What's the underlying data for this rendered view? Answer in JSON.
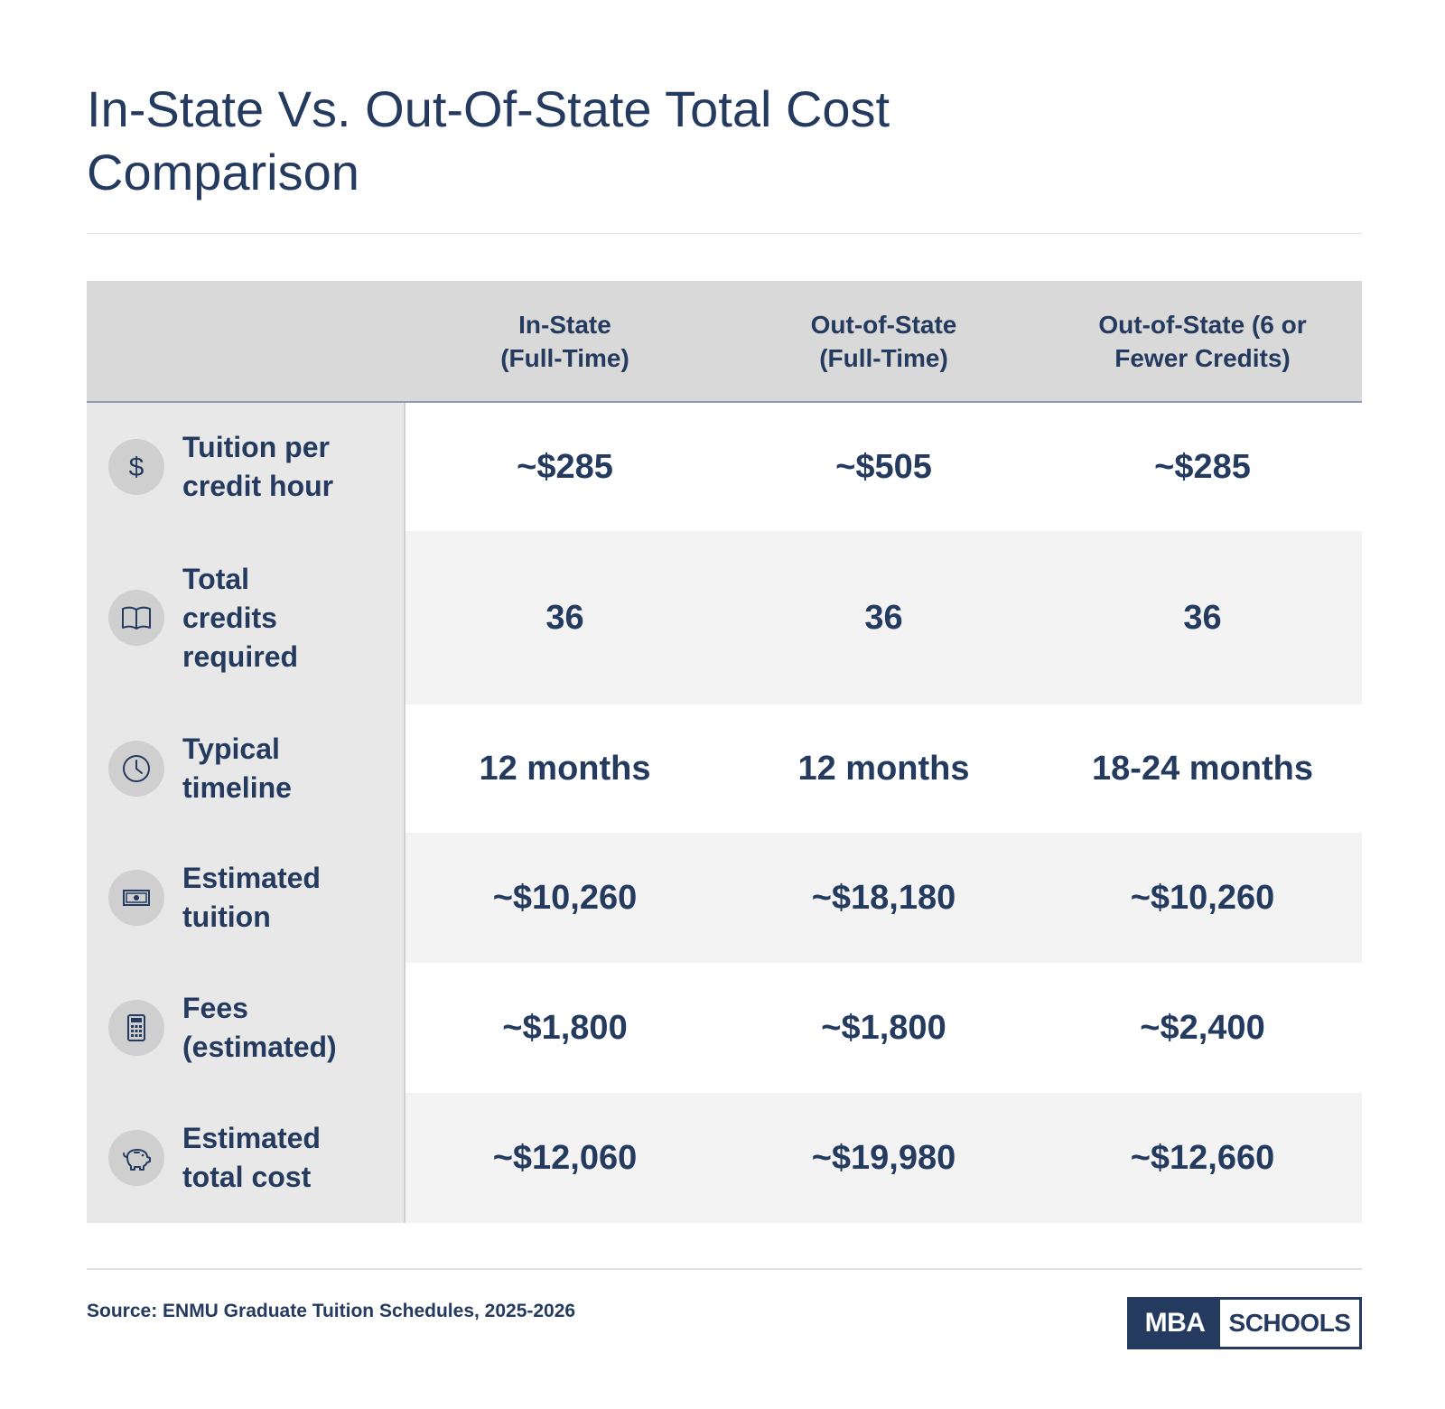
{
  "title": "In-State Vs. Out-Of-State Total Cost Comparison",
  "chart_data": {
    "type": "table",
    "columns": [
      "",
      "In-State\n(Full-Time)",
      "Out-of-State\n(Full-Time)",
      "Out-of-State (6 or\nFewer Credits)"
    ],
    "rows": [
      {
        "label": "Tuition per\ncredit hour",
        "icon": "dollar-icon",
        "values": [
          "~$285",
          "~$505",
          "~$285"
        ]
      },
      {
        "label": "Total\ncredits\nrequired",
        "icon": "book-icon",
        "values": [
          "36",
          "36",
          "36"
        ]
      },
      {
        "label": "Typical\ntimeline",
        "icon": "clock-icon",
        "values": [
          "12 months",
          "12 months",
          "18-24 months"
        ]
      },
      {
        "label": "Estimated\ntuition",
        "icon": "cash-icon",
        "values": [
          "~$10,260",
          "~$18,180",
          "~$10,260"
        ]
      },
      {
        "label": "Fees\n(estimated)",
        "icon": "calculator-icon",
        "values": [
          "~$1,800",
          "~$1,800",
          "~$2,400"
        ]
      },
      {
        "label": "Estimated\ntotal cost",
        "icon": "piggy-bank-icon",
        "values": [
          "~$12,060",
          "~$19,980",
          "~$12,660"
        ]
      }
    ]
  },
  "source": "Source: ENMU Graduate Tuition Schedules, 2025-2026",
  "logo": {
    "part1": "MBA",
    "part2": "SCHOOLS"
  },
  "colors": {
    "text": "#243a5e",
    "header_bg": "#d9d9d9",
    "label_bg": "#e8e8e8",
    "icon_bg": "#cfcfcf",
    "stripe": "#f3f3f3"
  }
}
